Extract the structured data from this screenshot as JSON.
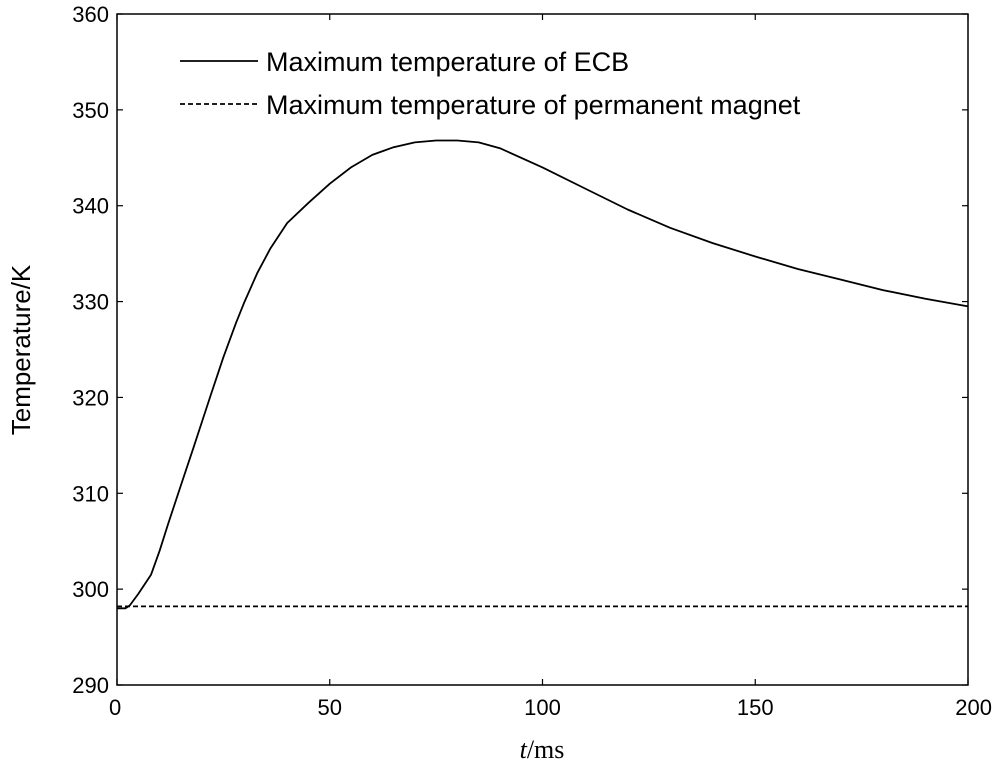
{
  "chart_data": {
    "type": "line",
    "title": "",
    "xlabel_italic": "t",
    "xlabel_rest": "/ms",
    "ylabel": "Temperature/K",
    "xlim": [
      0,
      200
    ],
    "ylim": [
      290,
      360
    ],
    "xticks": [
      0,
      50,
      100,
      150,
      200
    ],
    "yticks": [
      290,
      300,
      310,
      320,
      330,
      340,
      350,
      360
    ],
    "grid": false,
    "legend_position": "top-left",
    "series": [
      {
        "name": "Maximum temperature of ECB",
        "style": "solid",
        "color": "#000000",
        "x": [
          0,
          2,
          3,
          5,
          8,
          10,
          12,
          15,
          18,
          20,
          22,
          25,
          28,
          30,
          33,
          36,
          40,
          45,
          50,
          55,
          60,
          65,
          70,
          75,
          80,
          85,
          90,
          100,
          110,
          120,
          130,
          140,
          150,
          160,
          170,
          180,
          190,
          200
        ],
        "y": [
          298.0,
          298.0,
          298.3,
          299.5,
          301.5,
          304.0,
          306.8,
          310.8,
          314.8,
          317.5,
          320.2,
          324.2,
          327.8,
          330.0,
          333.0,
          335.5,
          338.2,
          340.3,
          342.3,
          344.0,
          345.3,
          346.1,
          346.6,
          346.8,
          346.8,
          346.6,
          346.0,
          344.0,
          341.8,
          339.6,
          337.7,
          336.1,
          334.7,
          333.4,
          332.3,
          331.2,
          330.3,
          329.5
        ]
      },
      {
        "name": "Maximum temperature of permanent magnet",
        "style": "dashed",
        "color": "#000000",
        "x": [
          0,
          200
        ],
        "y": [
          298.2,
          298.2
        ]
      }
    ]
  }
}
